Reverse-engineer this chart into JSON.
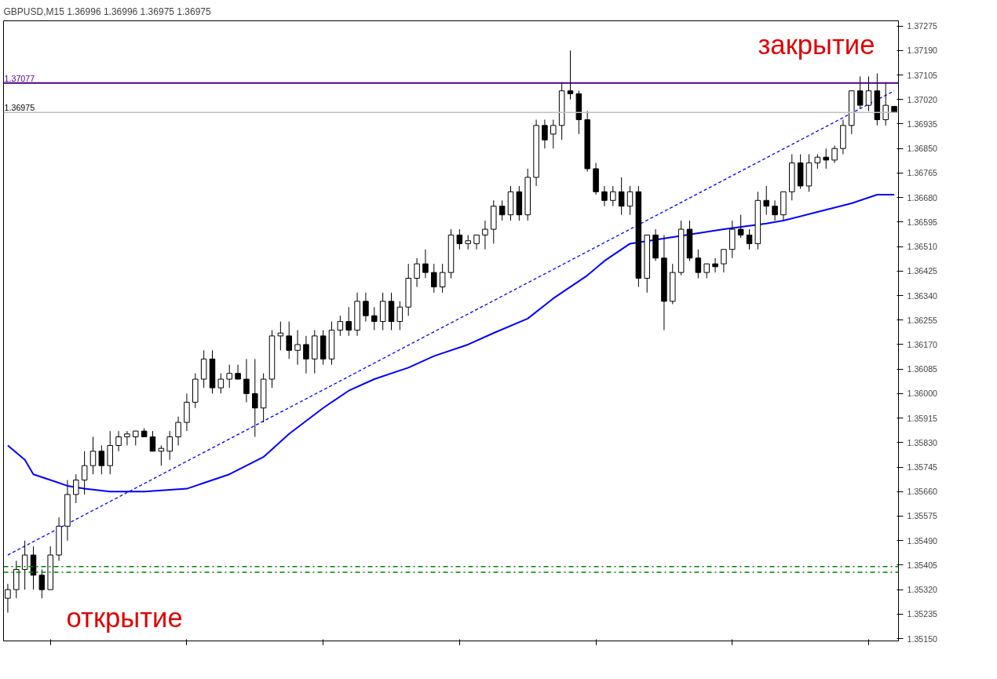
{
  "chart_data": {
    "type": "candlestick",
    "title": "GBPUSD,M15  1.36996 1.36996 1.36975 1.36975",
    "categories": [
      null,
      null,
      null,
      null,
      null,
      null,
      null,
      null,
      null,
      null,
      null,
      null,
      null,
      null,
      null,
      null,
      null,
      null,
      null,
      null,
      null,
      null,
      null,
      null,
      null,
      null,
      null,
      null,
      null,
      null,
      null,
      null,
      null,
      null,
      null,
      null,
      null,
      null,
      null,
      null,
      null,
      null,
      null,
      null,
      null,
      null,
      null,
      null,
      null,
      null,
      null,
      null,
      null,
      null,
      null,
      null,
      null,
      null,
      null,
      null,
      null,
      null,
      null,
      null,
      null,
      null,
      null,
      null,
      null,
      null,
      null,
      null,
      null,
      null,
      null,
      null,
      null,
      null,
      null,
      null,
      null,
      null,
      null,
      null,
      null,
      null,
      null,
      null,
      null,
      null,
      null,
      null,
      null,
      null,
      null,
      null,
      null,
      null,
      null,
      null,
      null,
      null,
      null,
      null,
      null
    ],
    "ohlc": [
      [
        1.3529,
        1.3534,
        1.3524,
        1.3532
      ],
      [
        1.3532,
        1.3542,
        1.3529,
        1.3539
      ],
      [
        1.3539,
        1.3549,
        1.3532,
        1.3544
      ],
      [
        1.3544,
        1.3547,
        1.3532,
        1.3537
      ],
      [
        1.3537,
        1.3539,
        1.3529,
        1.3532
      ],
      [
        1.3532,
        1.3547,
        1.3532,
        1.3544
      ],
      [
        1.3544,
        1.3557,
        1.3542,
        1.3554
      ],
      [
        1.3554,
        1.357,
        1.3549,
        1.3565
      ],
      [
        1.3565,
        1.3572,
        1.3562,
        1.357
      ],
      [
        1.357,
        1.358,
        1.3565,
        1.3575
      ],
      [
        1.3575,
        1.3585,
        1.3572,
        1.358
      ],
      [
        1.358,
        1.3582,
        1.3572,
        1.3575
      ],
      [
        1.3575,
        1.3587,
        1.3572,
        1.3582
      ],
      [
        1.3582,
        1.3587,
        1.358,
        1.3585
      ],
      [
        1.3585,
        1.3587,
        1.3582,
        1.3586
      ],
      [
        1.3585,
        1.3587,
        1.3582,
        1.3587
      ],
      [
        1.3587,
        1.3588,
        1.3585,
        1.3585
      ],
      [
        1.3585,
        1.3587,
        1.358,
        1.358
      ],
      [
        1.358,
        1.3582,
        1.3575,
        1.3581
      ],
      [
        1.358,
        1.3587,
        1.3577,
        1.3585
      ],
      [
        1.3585,
        1.3592,
        1.3582,
        1.359
      ],
      [
        1.359,
        1.36,
        1.3587,
        1.3597
      ],
      [
        1.3597,
        1.3607,
        1.3595,
        1.3605
      ],
      [
        1.3605,
        1.3615,
        1.3602,
        1.3612
      ],
      [
        1.3612,
        1.3615,
        1.36,
        1.3602
      ],
      [
        1.3602,
        1.3607,
        1.36,
        1.3605
      ],
      [
        1.3605,
        1.361,
        1.3602,
        1.3607
      ],
      [
        1.3607,
        1.361,
        1.3605,
        1.3605
      ],
      [
        1.3605,
        1.3612,
        1.3597,
        1.36
      ],
      [
        1.36,
        1.3612,
        1.3585,
        1.3595
      ],
      [
        1.3595,
        1.3607,
        1.359,
        1.3605
      ],
      [
        1.3605,
        1.3622,
        1.3602,
        1.362
      ],
      [
        1.362,
        1.3625,
        1.3615,
        1.3621
      ],
      [
        1.362,
        1.3625,
        1.3612,
        1.3615
      ],
      [
        1.3615,
        1.3622,
        1.361,
        1.3617
      ],
      [
        1.3617,
        1.362,
        1.3607,
        1.3612
      ],
      [
        1.3612,
        1.3622,
        1.3607,
        1.362
      ],
      [
        1.362,
        1.3622,
        1.361,
        1.3612
      ],
      [
        1.3612,
        1.3625,
        1.361,
        1.3622
      ],
      [
        1.3622,
        1.3627,
        1.362,
        1.3625
      ],
      [
        1.3625,
        1.363,
        1.362,
        1.3622
      ],
      [
        1.3622,
        1.3635,
        1.362,
        1.3632
      ],
      [
        1.3632,
        1.3635,
        1.3625,
        1.3627
      ],
      [
        1.3627,
        1.363,
        1.3622,
        1.3625
      ],
      [
        1.3625,
        1.3635,
        1.3622,
        1.3632
      ],
      [
        1.3632,
        1.3635,
        1.3622,
        1.3625
      ],
      [
        1.3625,
        1.3632,
        1.3622,
        1.363
      ],
      [
        1.363,
        1.3645,
        1.3627,
        1.364
      ],
      [
        1.364,
        1.3647,
        1.3637,
        1.3645
      ],
      [
        1.3645,
        1.365,
        1.364,
        1.3642
      ],
      [
        1.3642,
        1.3645,
        1.3635,
        1.3637
      ],
      [
        1.3637,
        1.3645,
        1.3635,
        1.3642
      ],
      [
        1.3642,
        1.3657,
        1.364,
        1.3655
      ],
      [
        1.3655,
        1.3657,
        1.365,
        1.3652
      ],
      [
        1.3652,
        1.3655,
        1.365,
        1.3653
      ],
      [
        1.3652,
        1.3655,
        1.365,
        1.3655
      ],
      [
        1.3655,
        1.366,
        1.365,
        1.3657
      ],
      [
        1.3657,
        1.3667,
        1.3652,
        1.3665
      ],
      [
        1.3665,
        1.3667,
        1.366,
        1.3662
      ],
      [
        1.3662,
        1.3672,
        1.366,
        1.367
      ],
      [
        1.367,
        1.3672,
        1.366,
        1.3662
      ],
      [
        1.3662,
        1.3678,
        1.366,
        1.3675
      ],
      [
        1.3675,
        1.3695,
        1.3672,
        1.3693
      ],
      [
        1.3693,
        1.3695,
        1.3685,
        1.3688
      ],
      [
        1.369,
        1.3695,
        1.3685,
        1.3693
      ],
      [
        1.3693,
        1.3708,
        1.3688,
        1.3705
      ],
      [
        1.3705,
        1.3719,
        1.3702,
        1.3704
      ],
      [
        1.3704,
        1.3705,
        1.369,
        1.3695
      ],
      [
        1.3695,
        1.3698,
        1.3677,
        1.3678
      ],
      [
        1.3678,
        1.368,
        1.3669,
        1.367
      ],
      [
        1.367,
        1.3672,
        1.3665,
        1.3667
      ],
      [
        1.3667,
        1.3672,
        1.3665,
        1.367
      ],
      [
        1.367,
        1.3675,
        1.3662,
        1.3665
      ],
      [
        1.3665,
        1.3672,
        1.3662,
        1.367
      ],
      [
        1.367,
        1.3672,
        1.3637,
        1.364
      ],
      [
        1.364,
        1.3655,
        1.3635,
        1.3655
      ],
      [
        1.3655,
        1.3657,
        1.3646,
        1.3647
      ],
      [
        1.3647,
        1.3655,
        1.3622,
        1.3632
      ],
      [
        1.3632,
        1.3645,
        1.3631,
        1.3642
      ],
      [
        1.3642,
        1.366,
        1.3641,
        1.3657
      ],
      [
        1.3657,
        1.366,
        1.3646,
        1.3647
      ],
      [
        1.3647,
        1.365,
        1.364,
        1.3642
      ],
      [
        1.3642,
        1.3645,
        1.364,
        1.3645
      ],
      [
        1.3645,
        1.3647,
        1.3642,
        1.3644
      ],
      [
        1.3645,
        1.365,
        1.3642,
        1.365
      ],
      [
        1.365,
        1.366,
        1.3647,
        1.3657
      ],
      [
        1.3657,
        1.3662,
        1.3654,
        1.3655
      ],
      [
        1.3655,
        1.3657,
        1.365,
        1.3652
      ],
      [
        1.3652,
        1.367,
        1.365,
        1.3667
      ],
      [
        1.3667,
        1.3672,
        1.3662,
        1.3665
      ],
      [
        1.3665,
        1.3667,
        1.366,
        1.3662
      ],
      [
        1.3662,
        1.367,
        1.366,
        1.367
      ],
      [
        1.367,
        1.3683,
        1.3667,
        1.368
      ],
      [
        1.368,
        1.3683,
        1.3671,
        1.3672
      ],
      [
        1.3672,
        1.3683,
        1.367,
        1.368
      ],
      [
        1.368,
        1.3683,
        1.3678,
        1.3682
      ],
      [
        1.3682,
        1.3685,
        1.3678,
        1.3681
      ],
      [
        1.3681,
        1.3686,
        1.368,
        1.3685
      ],
      [
        1.3685,
        1.3695,
        1.3683,
        1.3693
      ],
      [
        1.3693,
        1.3705,
        1.369,
        1.3705
      ],
      [
        1.3705,
        1.371,
        1.3699,
        1.37
      ],
      [
        1.37,
        1.371,
        1.3698,
        1.3705
      ],
      [
        1.3705,
        1.3711,
        1.3693,
        1.3695
      ],
      [
        1.3695,
        1.3708,
        1.3693,
        1.37
      ],
      [
        1.36996,
        1.36996,
        1.36975,
        1.36975
      ]
    ],
    "series": [
      {
        "type": "line",
        "color": "#0000ff",
        "line_style": "solid",
        "values": [
          1.3582,
          null,
          1.3577,
          1.3572,
          null,
          1.357,
          null,
          1.3568,
          null,
          1.3567,
          null,
          null,
          1.3566,
          null,
          null,
          null,
          1.3566,
          null,
          null,
          null,
          null,
          1.3567,
          null,
          1.3569,
          null,
          null,
          1.3572,
          null,
          null,
          null,
          1.3578,
          null,
          null,
          1.3586,
          null,
          null,
          null,
          1.3595,
          null,
          null,
          1.3601,
          null,
          null,
          1.3605,
          null,
          null,
          null,
          1.3609,
          null,
          null,
          1.3613,
          null,
          null,
          null,
          1.3617,
          null,
          null,
          1.3621,
          null,
          null,
          null,
          1.3626,
          null,
          null,
          1.3633,
          null,
          null,
          null,
          1.3641,
          null,
          1.3646,
          null,
          null,
          1.3652,
          null,
          null,
          null,
          null,
          null,
          null,
          null,
          null,
          null,
          null,
          1.3657,
          null,
          null,
          null,
          null,
          1.3659,
          null,
          1.366,
          null,
          null,
          null,
          1.3663,
          null,
          null,
          null,
          1.3666,
          null,
          null,
          1.3669,
          null,
          1.3669
        ]
      },
      {
        "type": "line",
        "color": "#0000ff",
        "line_style": "dashed",
        "values": [
          1.3544,
          null,
          null,
          null,
          null,
          null,
          null,
          null,
          null,
          null,
          null,
          null,
          null,
          null,
          null,
          null,
          null,
          null,
          null,
          null,
          null,
          null,
          null,
          null,
          null,
          null,
          null,
          null,
          null,
          null,
          null,
          null,
          null,
          null,
          null,
          null,
          null,
          null,
          null,
          null,
          null,
          null,
          null,
          null,
          null,
          null,
          null,
          null,
          null,
          null,
          null,
          null,
          null,
          null,
          null,
          null,
          null,
          null,
          null,
          null,
          null,
          null,
          null,
          null,
          null,
          null,
          null,
          null,
          null,
          null,
          null,
          null,
          null,
          null,
          null,
          null,
          null,
          null,
          null,
          null,
          null,
          null,
          null,
          null,
          null,
          null,
          null,
          null,
          null,
          null,
          null,
          null,
          null,
          null,
          null,
          null,
          null,
          null,
          null,
          null,
          null,
          null,
          null,
          null,
          1.3705
        ]
      }
    ],
    "ref_lines": [
      {
        "axis": "y",
        "value": 1.37077,
        "label": "1.37077",
        "color": "#4b0082",
        "line_style": "solid"
      },
      {
        "axis": "y",
        "value": 1.36975,
        "label": "1.36975",
        "color": "#c0c0c0",
        "line_style": "solid"
      },
      {
        "axis": "y",
        "value": 1.354,
        "label": null,
        "color": "#008000",
        "line_style": "dashdot"
      },
      {
        "axis": "y",
        "value": 1.3538,
        "label": null,
        "color": "#008000",
        "line_style": "dashdot"
      }
    ],
    "annotations": [
      "закрытие",
      "открытие"
    ],
    "ylim": [
      1.35142,
      1.37293
    ],
    "yticks": [
      1.37275,
      {
        "value": 1.3719,
        "label": "1.37190"
      },
      1.37105,
      {
        "value": 1.3702,
        "label": "1.37020"
      },
      1.36935,
      {
        "value": 1.3685,
        "label": "1.36850"
      },
      1.36765,
      {
        "value": 1.3668,
        "label": "1.36680"
      },
      1.36595,
      {
        "value": 1.3651,
        "label": "1.36510"
      },
      1.36425,
      {
        "value": 1.3634,
        "label": "1.36340"
      },
      1.36255,
      {
        "value": 1.3617,
        "label": "1.36170"
      },
      1.36085,
      {
        "value": 1.36,
        "label": "1.36000"
      },
      1.35915,
      {
        "value": 1.3583,
        "label": "1.35830"
      },
      1.35745,
      {
        "value": 1.3566,
        "label": "1.35660"
      },
      1.35575,
      {
        "value": 1.3549,
        "label": "1.35490"
      },
      1.35405,
      {
        "value": 1.3532,
        "label": "1.35320"
      },
      1.35235,
      {
        "value": 1.3515,
        "label": "1.35150"
      }
    ],
    "tick_labels": "y",
    "grid": false
  }
}
